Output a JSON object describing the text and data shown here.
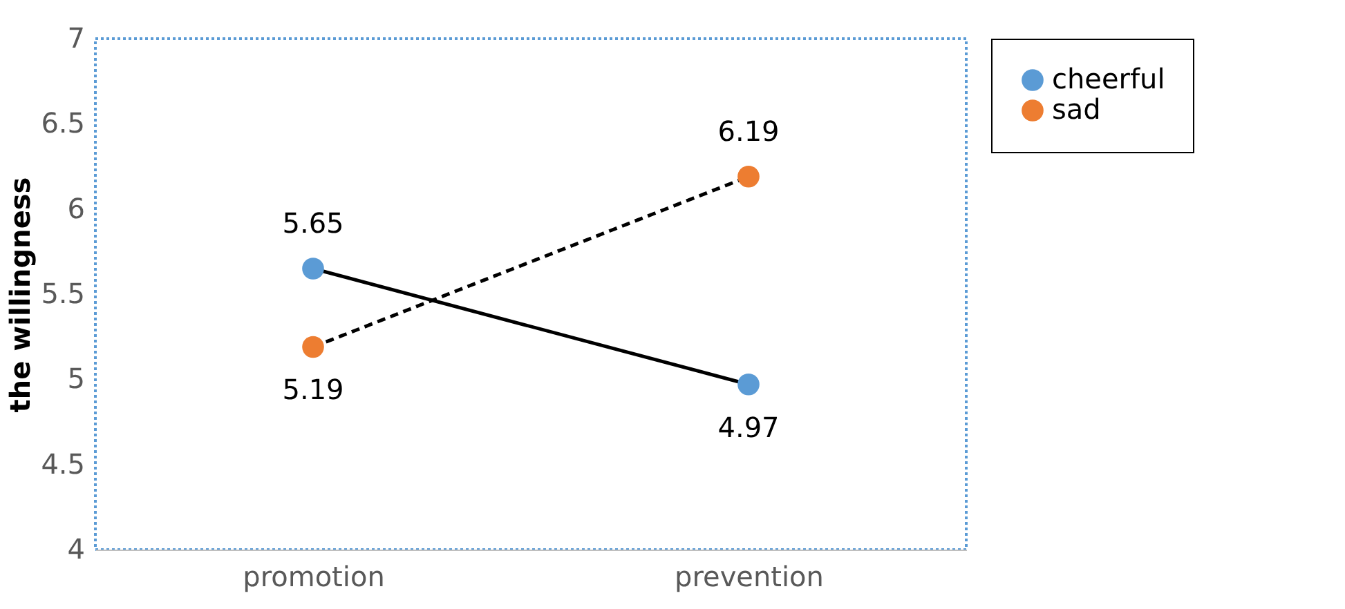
{
  "chart_data": {
    "type": "line",
    "ylabel": "the willingness",
    "categories": [
      "promotion",
      "prevention"
    ],
    "series": [
      {
        "name": "cheerful",
        "color": "#5b9bd5",
        "values": [
          5.65,
          4.97
        ],
        "line_style": "solid"
      },
      {
        "name": "sad",
        "color": "#ed7d31",
        "values": [
          5.19,
          6.19
        ],
        "line_style": "dashed"
      }
    ],
    "ylim": [
      4,
      7
    ],
    "yticks": [
      4,
      4.5,
      5,
      5.5,
      6,
      6.5,
      7
    ],
    "grid": false,
    "legend": "right",
    "marker": "circle",
    "data_labels": true
  }
}
